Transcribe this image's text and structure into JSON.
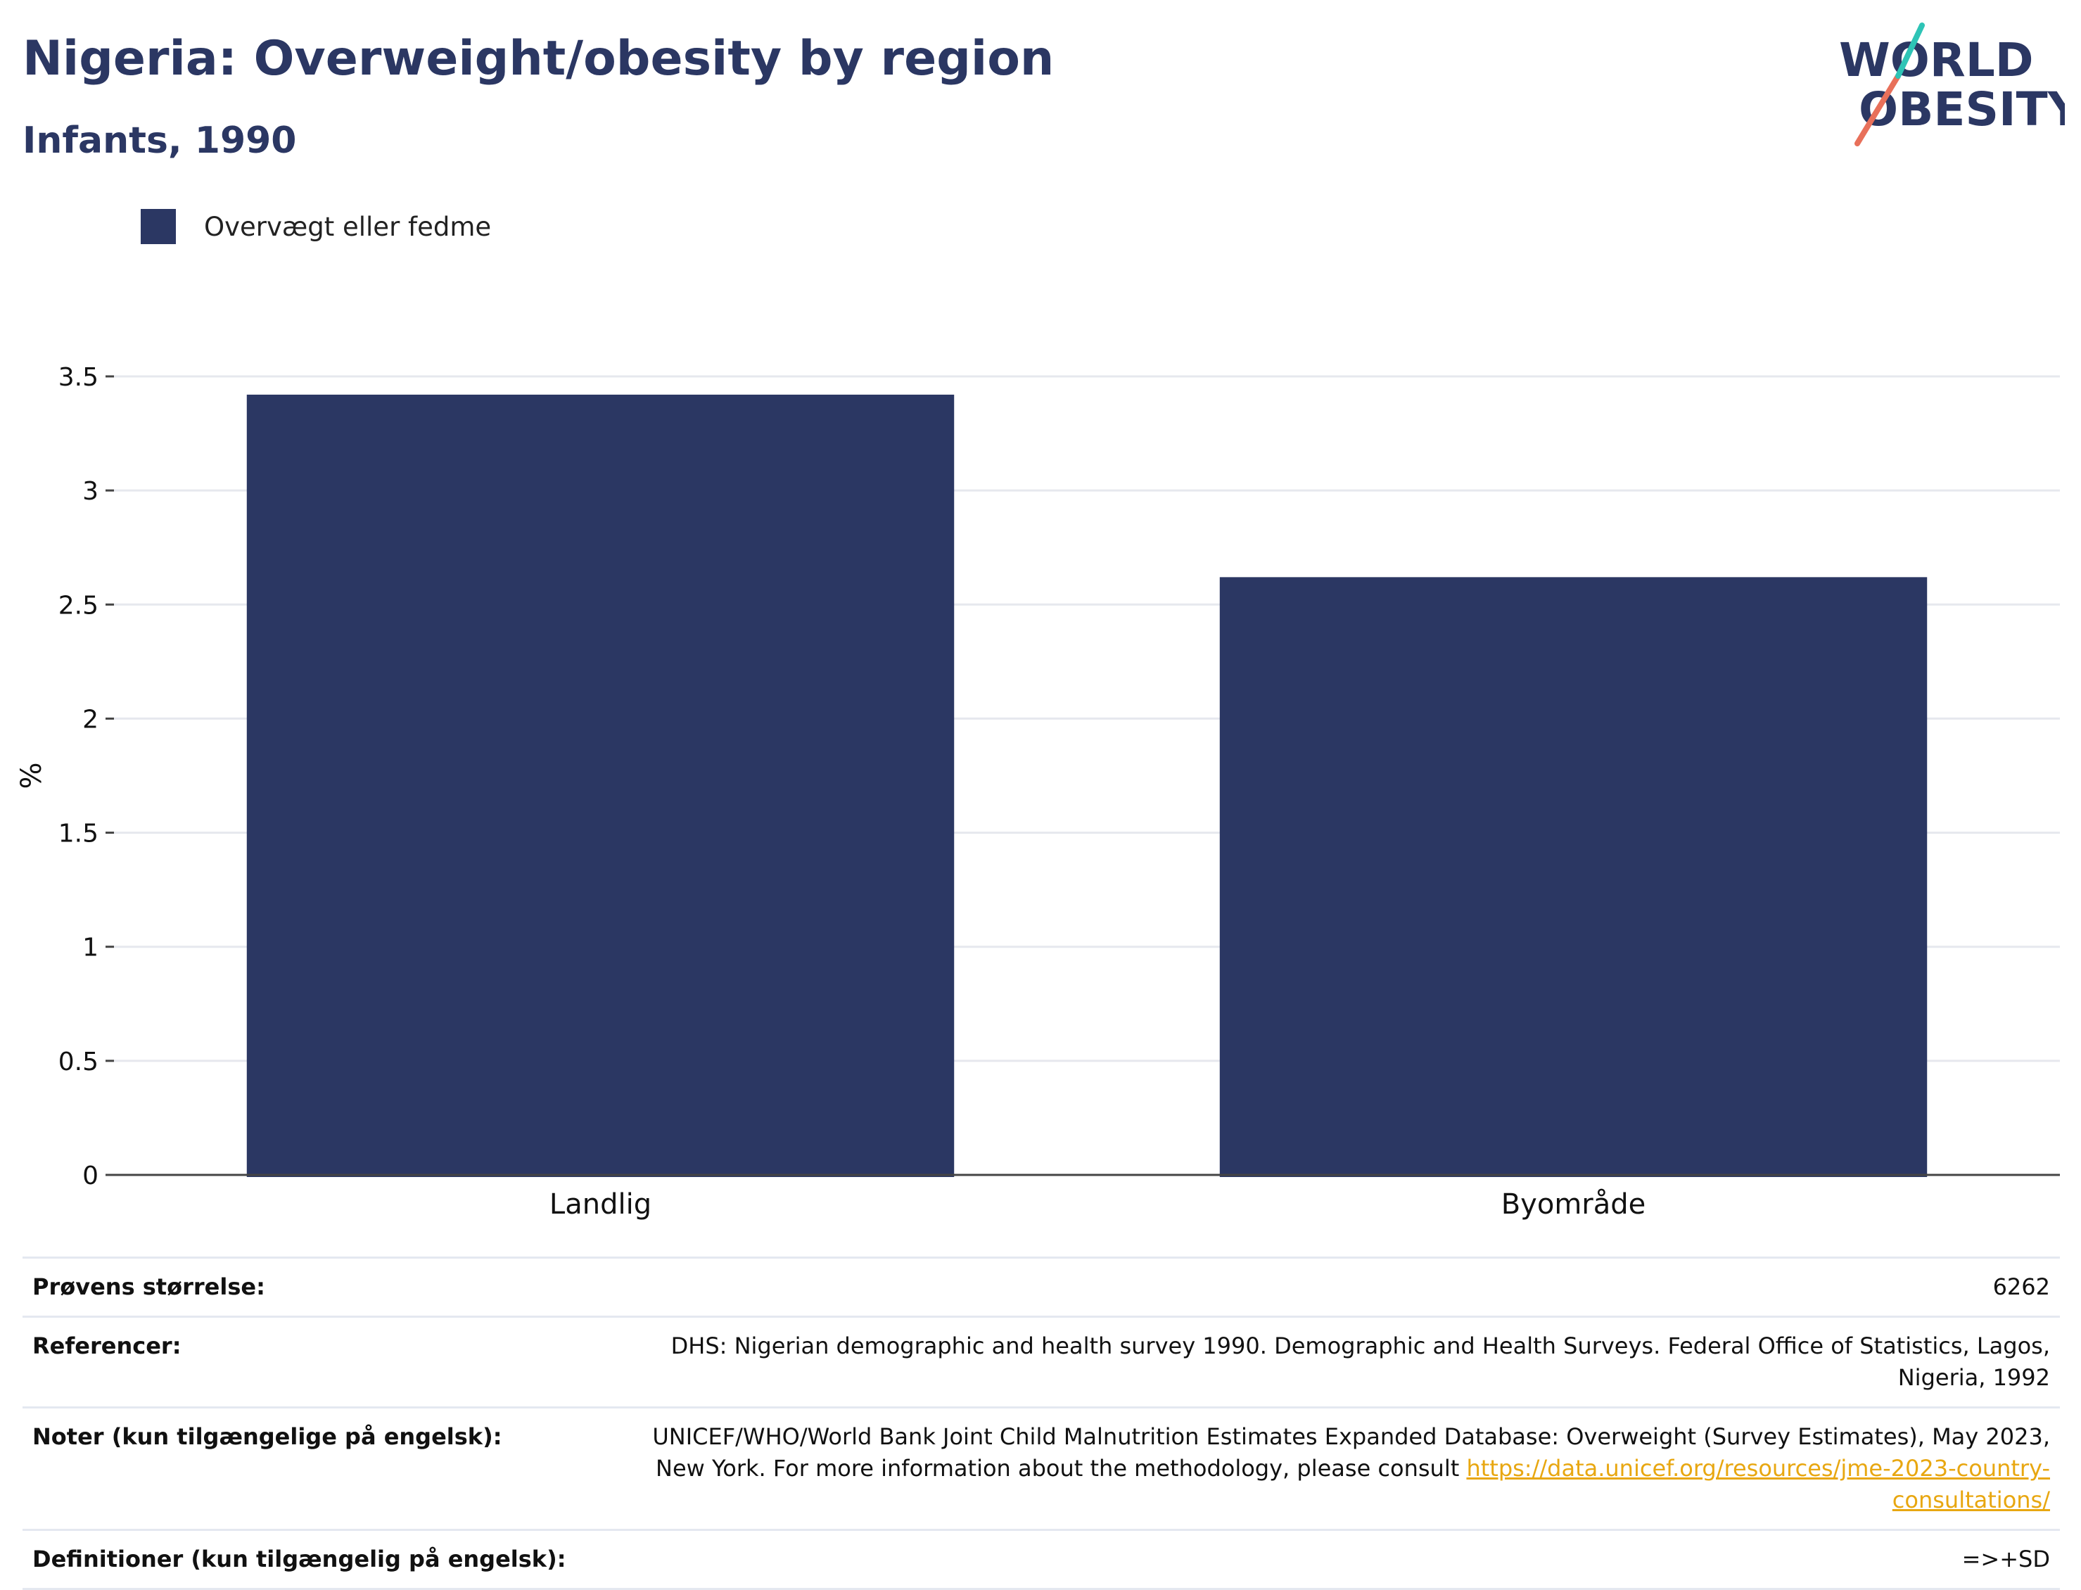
{
  "header": {
    "title": "Nigeria: Overweight/obesity by region",
    "subtitle": "Infants, 1990"
  },
  "logo": {
    "line1": "WORLD",
    "line2": "OBESITY"
  },
  "colors": {
    "brand": "#2b3763",
    "series": "#2b3763",
    "link": "#e8a711",
    "logo_teal": "#2ec4b6",
    "logo_coral": "#e8705a"
  },
  "chart_data": {
    "type": "bar",
    "categories": [
      "Landlig",
      "Byområde"
    ],
    "series": [
      {
        "name": "Overvægt eller fedme",
        "values": [
          3.42,
          2.62
        ]
      }
    ],
    "xlabel": "",
    "ylabel": "%",
    "ylim": [
      0,
      3.5
    ],
    "yticks": [
      0,
      0.5,
      1,
      1.5,
      2,
      2.5,
      3,
      3.5
    ],
    "ytick_labels": [
      "0",
      "0.5",
      "1",
      "1.5",
      "2",
      "2.5",
      "3",
      "3.5"
    ],
    "grid": true,
    "legend_position": "top-left"
  },
  "info": {
    "sample_size": {
      "label": "Prøvens størrelse:",
      "value": "6262"
    },
    "references": {
      "label": "Referencer:",
      "value": "DHS: Nigerian demographic and health survey 1990. Demographic and Health Surveys. Federal Office of Statistics, Lagos, Nigeria, 1992"
    },
    "notes": {
      "label": "Noter (kun tilgængelige på engelsk):",
      "value": "UNICEF/WHO/World Bank Joint Child Malnutrition Estimates Expanded Database: Overweight (Survey Estimates), May 2023, New York. For more information about the methodology, please consult ",
      "link": "https://data.unicef.org/resources/jme-2023-country-consultations/"
    },
    "definitions": {
      "label": "Definitioner (kun tilgængelig på engelsk):",
      "value": "=>+SD"
    }
  }
}
